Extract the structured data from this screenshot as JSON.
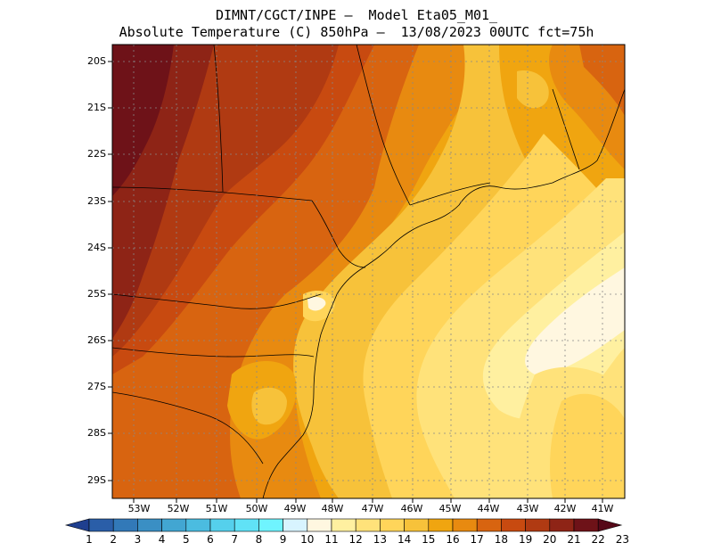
{
  "title": {
    "line1": "DIMNT/CGCT/INPE –  Model Eta05_M01_",
    "line2": "Absolute Temperature (C) 850hPa –  13/08/2023 00UTC fct=75h"
  },
  "map": {
    "lat_labels": [
      "20S",
      "21S",
      "22S",
      "23S",
      "24S",
      "25S",
      "26S",
      "27S",
      "28S",
      "29S"
    ],
    "lon_labels": [
      "53W",
      "52W",
      "51W",
      "50W",
      "49W",
      "48W",
      "47W",
      "46W",
      "45W",
      "44W",
      "43W",
      "42W",
      "41W"
    ],
    "background_color": "#f0a510"
  },
  "colorbar": {
    "labels": [
      "1",
      "2",
      "3",
      "4",
      "5",
      "6",
      "7",
      "8",
      "9",
      "10",
      "11",
      "12",
      "13",
      "14",
      "15",
      "16",
      "17",
      "18",
      "19",
      "20",
      "21",
      "22",
      "23"
    ],
    "colors": [
      "#1f3f8f",
      "#2a5ea8",
      "#3279b8",
      "#3a8fc4",
      "#42a6d2",
      "#4bbce0",
      "#55d0ec",
      "#60e2f6",
      "#6ff4ff",
      "#d8f4ff",
      "#fff7e0",
      "#fff0a0",
      "#ffe27a",
      "#ffd55a",
      "#f7c23a",
      "#f0a510",
      "#e88a10",
      "#d86410",
      "#c84a10",
      "#b03a12",
      "#8e2416",
      "#6e1218",
      "#560818"
    ]
  }
}
